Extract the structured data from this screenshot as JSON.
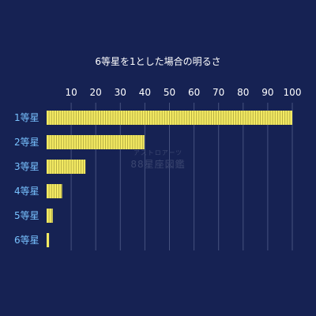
{
  "chart_data": {
    "type": "bar",
    "orientation": "horizontal",
    "title": "6等星を1とした場合の明るさ",
    "categories": [
      "1等星",
      "2等星",
      "3等星",
      "4等星",
      "5等星",
      "6等星"
    ],
    "values": [
      100,
      39.8,
      15.8,
      6.3,
      2.5,
      1
    ],
    "xticks": [
      10,
      20,
      30,
      40,
      50,
      60,
      70,
      80,
      90,
      100
    ],
    "xlim": [
      0,
      100
    ],
    "grid": true,
    "legend": "none",
    "colors": {
      "bar": "#f4ea63",
      "stripe": "#a8a23e",
      "background": "#162253",
      "grid": "#46527f",
      "category": "#78c2ff",
      "text": "#ffffff"
    }
  },
  "watermark": {
    "line1": "アストロアーツ",
    "line2": "88星座図鑑"
  }
}
